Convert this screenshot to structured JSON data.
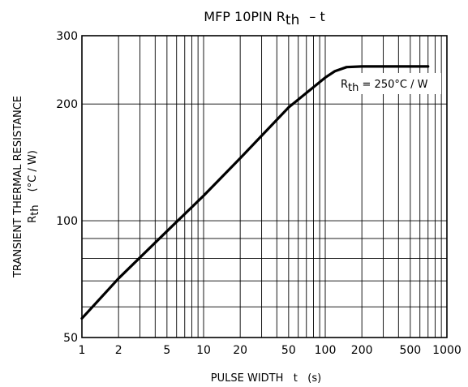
{
  "chart_data": {
    "type": "line",
    "title": "MFP 10PIN Rth – t",
    "title_parts": {
      "main": "MFP 10PIN R",
      "sub": "th",
      "tail": "– t"
    },
    "xlabel": "PULSE WIDTH   t   (s)",
    "ylabel_line1": "TRANSIENT THERMAL RESISTANCE",
    "ylabel_line2_main": "R",
    "ylabel_line2_sub": "th",
    "ylabel_line2_unit": "(°C / W)",
    "x_scale": "log",
    "y_scale": "log",
    "xlim": [
      1,
      1000
    ],
    "ylim": [
      50,
      300
    ],
    "grid": true,
    "x_ticks": [
      {
        "value": 1,
        "label": "1"
      },
      {
        "value": 2,
        "label": "2"
      },
      {
        "value": 5,
        "label": "5"
      },
      {
        "value": 10,
        "label": "10"
      },
      {
        "value": 20,
        "label": "20"
      },
      {
        "value": 50,
        "label": "50"
      },
      {
        "value": 100,
        "label": "100"
      },
      {
        "value": 200,
        "label": "200"
      },
      {
        "value": 500,
        "label": "500"
      },
      {
        "value": 1000,
        "label": "1000"
      }
    ],
    "y_ticks": [
      {
        "value": 50,
        "label": "50"
      },
      {
        "value": 100,
        "label": "100"
      },
      {
        "value": 200,
        "label": "200"
      },
      {
        "value": 300,
        "label": "300"
      }
    ],
    "x_grid_values": [
      1,
      2,
      3,
      4,
      5,
      6,
      7,
      8,
      9,
      10,
      20,
      30,
      40,
      50,
      60,
      70,
      80,
      90,
      100,
      200,
      300,
      400,
      500,
      600,
      700,
      800,
      900,
      1000
    ],
    "y_grid_values": [
      50,
      60,
      70,
      80,
      90,
      100,
      200,
      300
    ],
    "series": [
      {
        "x": [
          1,
          2,
          5,
          10,
          20,
          50,
          100,
          120,
          150,
          200,
          300,
          500,
          700
        ],
        "y": [
          56,
          71,
          94,
          116,
          145,
          196,
          234,
          243,
          249,
          250,
          250,
          250,
          250
        ]
      }
    ],
    "annotation": {
      "main": "R",
      "sub": "th",
      "text": " = 250°C / W"
    }
  }
}
